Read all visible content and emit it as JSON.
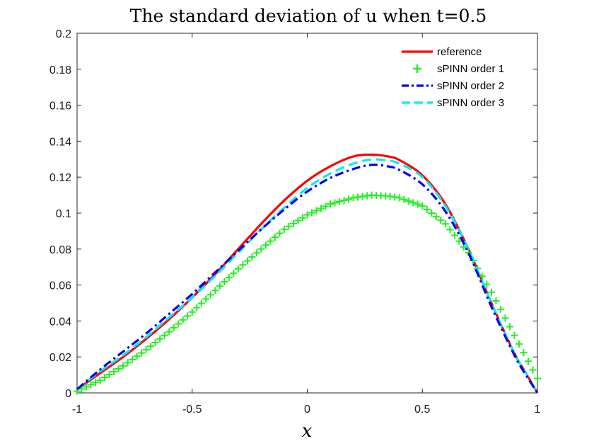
{
  "chart_data": {
    "type": "line",
    "title": "The standard deviation of u when t=0.5",
    "xlabel": "x",
    "ylabel": "",
    "xlim": [
      -1,
      1
    ],
    "ylim": [
      0,
      0.2
    ],
    "grid": false,
    "legend_position": "top-right",
    "x_ticks": [
      -1,
      -0.5,
      0,
      0.5,
      1
    ],
    "x_tick_labels": [
      "-1",
      "-0.5",
      "0",
      "0.5",
      "1"
    ],
    "y_ticks": [
      0,
      0.02,
      0.04,
      0.06,
      0.08,
      0.1,
      0.12,
      0.14,
      0.16,
      0.18,
      0.2
    ],
    "y_tick_labels": [
      "0",
      "0.02",
      "0.04",
      "0.06",
      "0.08",
      "0.1",
      "0.12",
      "0.14",
      "0.16",
      "0.18",
      "0.2"
    ],
    "x": [
      -1,
      -0.9,
      -0.8,
      -0.7,
      -0.6,
      -0.5,
      -0.4,
      -0.3,
      -0.2,
      -0.1,
      0,
      0.1,
      0.2,
      0.28,
      0.35,
      0.4,
      0.5,
      0.6,
      0.7,
      0.8,
      0.9,
      0.95,
      1
    ],
    "series": [
      {
        "name": "reference",
        "color": "#ff0000",
        "style": "solid",
        "values": [
          0.002,
          0.011,
          0.02,
          0.03,
          0.041,
          0.053,
          0.066,
          0.08,
          0.094,
          0.107,
          0.118,
          0.126,
          0.1315,
          0.1325,
          0.1315,
          0.1295,
          0.121,
          0.105,
          0.08,
          0.05,
          0.022,
          0.011,
          0.0
        ]
      },
      {
        "name": "sPINN order 1",
        "color": "#22ee22",
        "style": "plus-markers",
        "values": [
          0.001,
          0.007,
          0.015,
          0.024,
          0.034,
          0.045,
          0.057,
          0.069,
          0.08,
          0.091,
          0.099,
          0.105,
          0.1085,
          0.11,
          0.1095,
          0.1085,
          0.104,
          0.094,
          0.078,
          0.056,
          0.032,
          0.02,
          0.008
        ]
      },
      {
        "name": "sPINN order 2",
        "color": "#0000ee",
        "style": "dash-dot",
        "values": [
          0.002,
          0.013,
          0.023,
          0.033,
          0.044,
          0.055,
          0.067,
          0.079,
          0.091,
          0.102,
          0.112,
          0.1195,
          0.1245,
          0.1268,
          0.126,
          0.124,
          0.116,
          0.101,
          0.078,
          0.048,
          0.021,
          0.01,
          0.0
        ]
      },
      {
        "name": "sPINN order 3",
        "color": "#00eeee",
        "style": "dashed",
        "values": [
          0.002,
          0.012,
          0.021,
          0.031,
          0.042,
          0.053,
          0.065,
          0.078,
          0.091,
          0.103,
          0.114,
          0.122,
          0.1275,
          0.1298,
          0.1292,
          0.1275,
          0.12,
          0.104,
          0.08,
          0.05,
          0.022,
          0.011,
          0.0
        ]
      }
    ]
  }
}
